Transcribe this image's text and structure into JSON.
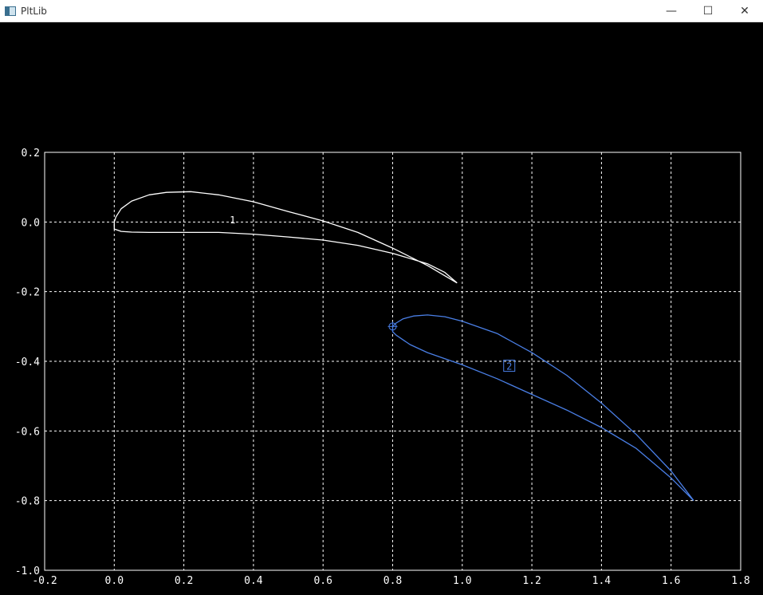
{
  "window": {
    "title": "PltLib",
    "controls": {
      "minimize": "—",
      "maximize": "☐",
      "close": "✕"
    }
  },
  "chart_data": {
    "type": "line",
    "title": "",
    "xlabel": "",
    "ylabel": "",
    "xlim": [
      -0.2,
      1.8
    ],
    "ylim": [
      -1.0,
      0.2
    ],
    "grid": true,
    "x_ticks": [
      "-0.2",
      "0.0",
      "0.2",
      "0.4",
      "0.6",
      "0.8",
      "1.0",
      "1.2",
      "1.4",
      "1.6",
      "1.8"
    ],
    "y_ticks": [
      "0.2",
      "0.0",
      "-0.2",
      "-0.4",
      "-0.6",
      "-0.8",
      "-1.0"
    ],
    "colors": {
      "axes": "#ffffff",
      "grid": "#ffffff",
      "series1": "#ffffff",
      "series2": "#4a7fe6"
    },
    "series": [
      {
        "label": "1",
        "label_pos": [
          0.34,
          0.005
        ],
        "x": [
          0.985,
          0.9,
          0.8,
          0.7,
          0.6,
          0.5,
          0.4,
          0.3,
          0.22,
          0.15,
          0.1,
          0.05,
          0.02,
          0.005,
          0.0,
          0.0,
          0.02,
          0.05,
          0.1,
          0.2,
          0.3,
          0.4,
          0.5,
          0.6,
          0.7,
          0.8,
          0.9,
          0.95,
          0.985
        ],
        "y": [
          -0.175,
          -0.125,
          -0.075,
          -0.03,
          0.003,
          0.03,
          0.058,
          0.078,
          0.087,
          0.085,
          0.078,
          0.06,
          0.038,
          0.015,
          0.0,
          -0.02,
          -0.027,
          -0.029,
          -0.03,
          -0.03,
          -0.03,
          -0.035,
          -0.043,
          -0.052,
          -0.067,
          -0.09,
          -0.12,
          -0.145,
          -0.175
        ]
      },
      {
        "label": "2",
        "label_pos": [
          1.135,
          -0.415
        ],
        "marker": [
          0.8,
          -0.3
        ],
        "x": [
          1.665,
          1.6,
          1.5,
          1.4,
          1.3,
          1.2,
          1.1,
          1.0,
          0.95,
          0.9,
          0.86,
          0.83,
          0.81,
          0.8,
          0.8,
          0.81,
          0.85,
          0.9,
          1.0,
          1.1,
          1.2,
          1.3,
          1.4,
          1.5,
          1.6,
          1.665
        ],
        "y": [
          -0.8,
          -0.715,
          -0.61,
          -0.52,
          -0.44,
          -0.375,
          -0.32,
          -0.285,
          -0.272,
          -0.267,
          -0.27,
          -0.278,
          -0.29,
          -0.3,
          -0.315,
          -0.325,
          -0.352,
          -0.375,
          -0.41,
          -0.45,
          -0.495,
          -0.54,
          -0.59,
          -0.65,
          -0.735,
          -0.8
        ]
      }
    ]
  }
}
